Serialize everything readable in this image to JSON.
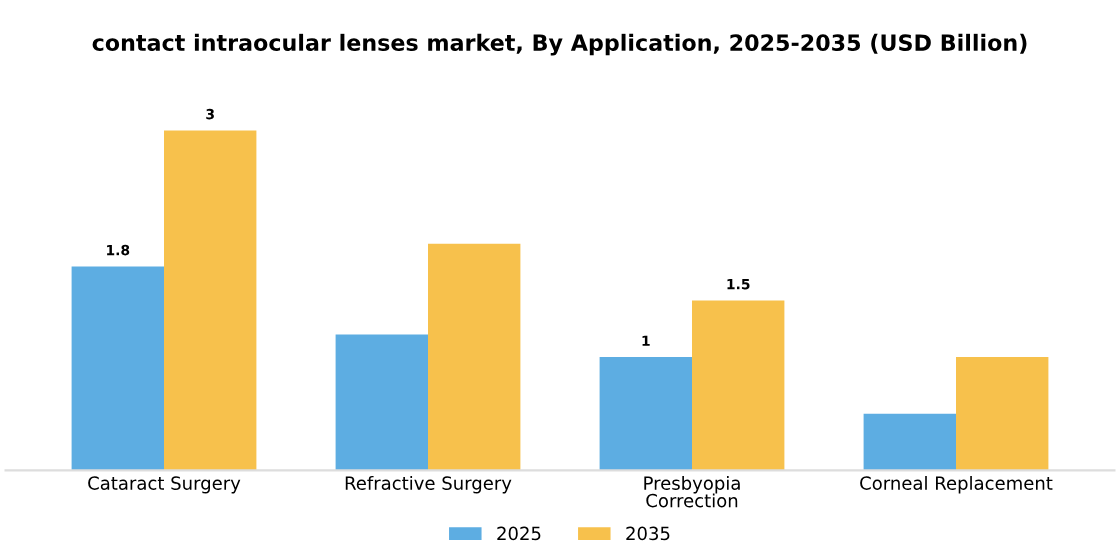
{
  "chart_data": {
    "type": "bar",
    "title": "contact intraocular lenses market, By Application, 2025-2035 (USD Billion)",
    "categories": [
      "Cataract Surgery",
      "Refractive Surgery",
      "Presbyopia\nCorrection",
      "Corneal Replacement"
    ],
    "series": [
      {
        "name": "2025",
        "color": "#5dade2",
        "values": [
          1.8,
          1.2,
          1.0,
          0.5
        ],
        "value_labels": [
          "1.8",
          null,
          "1",
          null
        ]
      },
      {
        "name": "2035",
        "color": "#f7c14c",
        "values": [
          3.0,
          2.0,
          1.5,
          1.0
        ],
        "value_labels": [
          "3",
          null,
          "1.5",
          null
        ]
      }
    ],
    "legend": "bottom",
    "grid": false
  }
}
